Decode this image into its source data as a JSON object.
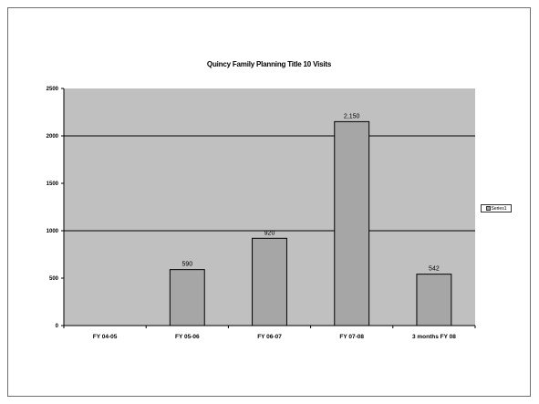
{
  "chart_data": {
    "type": "bar",
    "title": "Quincy Family Planning Title 10 Visits",
    "xlabel": "",
    "ylabel": "",
    "categories": [
      "FY 04-05",
      "FY 05-06",
      "FY 06-07",
      "FY 07-08",
      "3 months FY 08"
    ],
    "series": [
      {
        "name": "Series1",
        "values": [
          0,
          590,
          920,
          2150,
          542
        ]
      }
    ],
    "value_labels": [
      "",
      "590",
      "920",
      "2,150",
      "542"
    ],
    "y_ticks": [
      "0",
      "500",
      "1000",
      "1500",
      "2000",
      "2500"
    ],
    "ylim": [
      0,
      2500
    ],
    "grid": true,
    "gridlines_at": [
      1000,
      2000
    ],
    "legend_position": "right",
    "colors": {
      "plot_bg": "#c0c0c0",
      "bar_fill": "#a6a6a6",
      "bar_stroke": "#000000",
      "frame": "#6f6f6f"
    }
  }
}
